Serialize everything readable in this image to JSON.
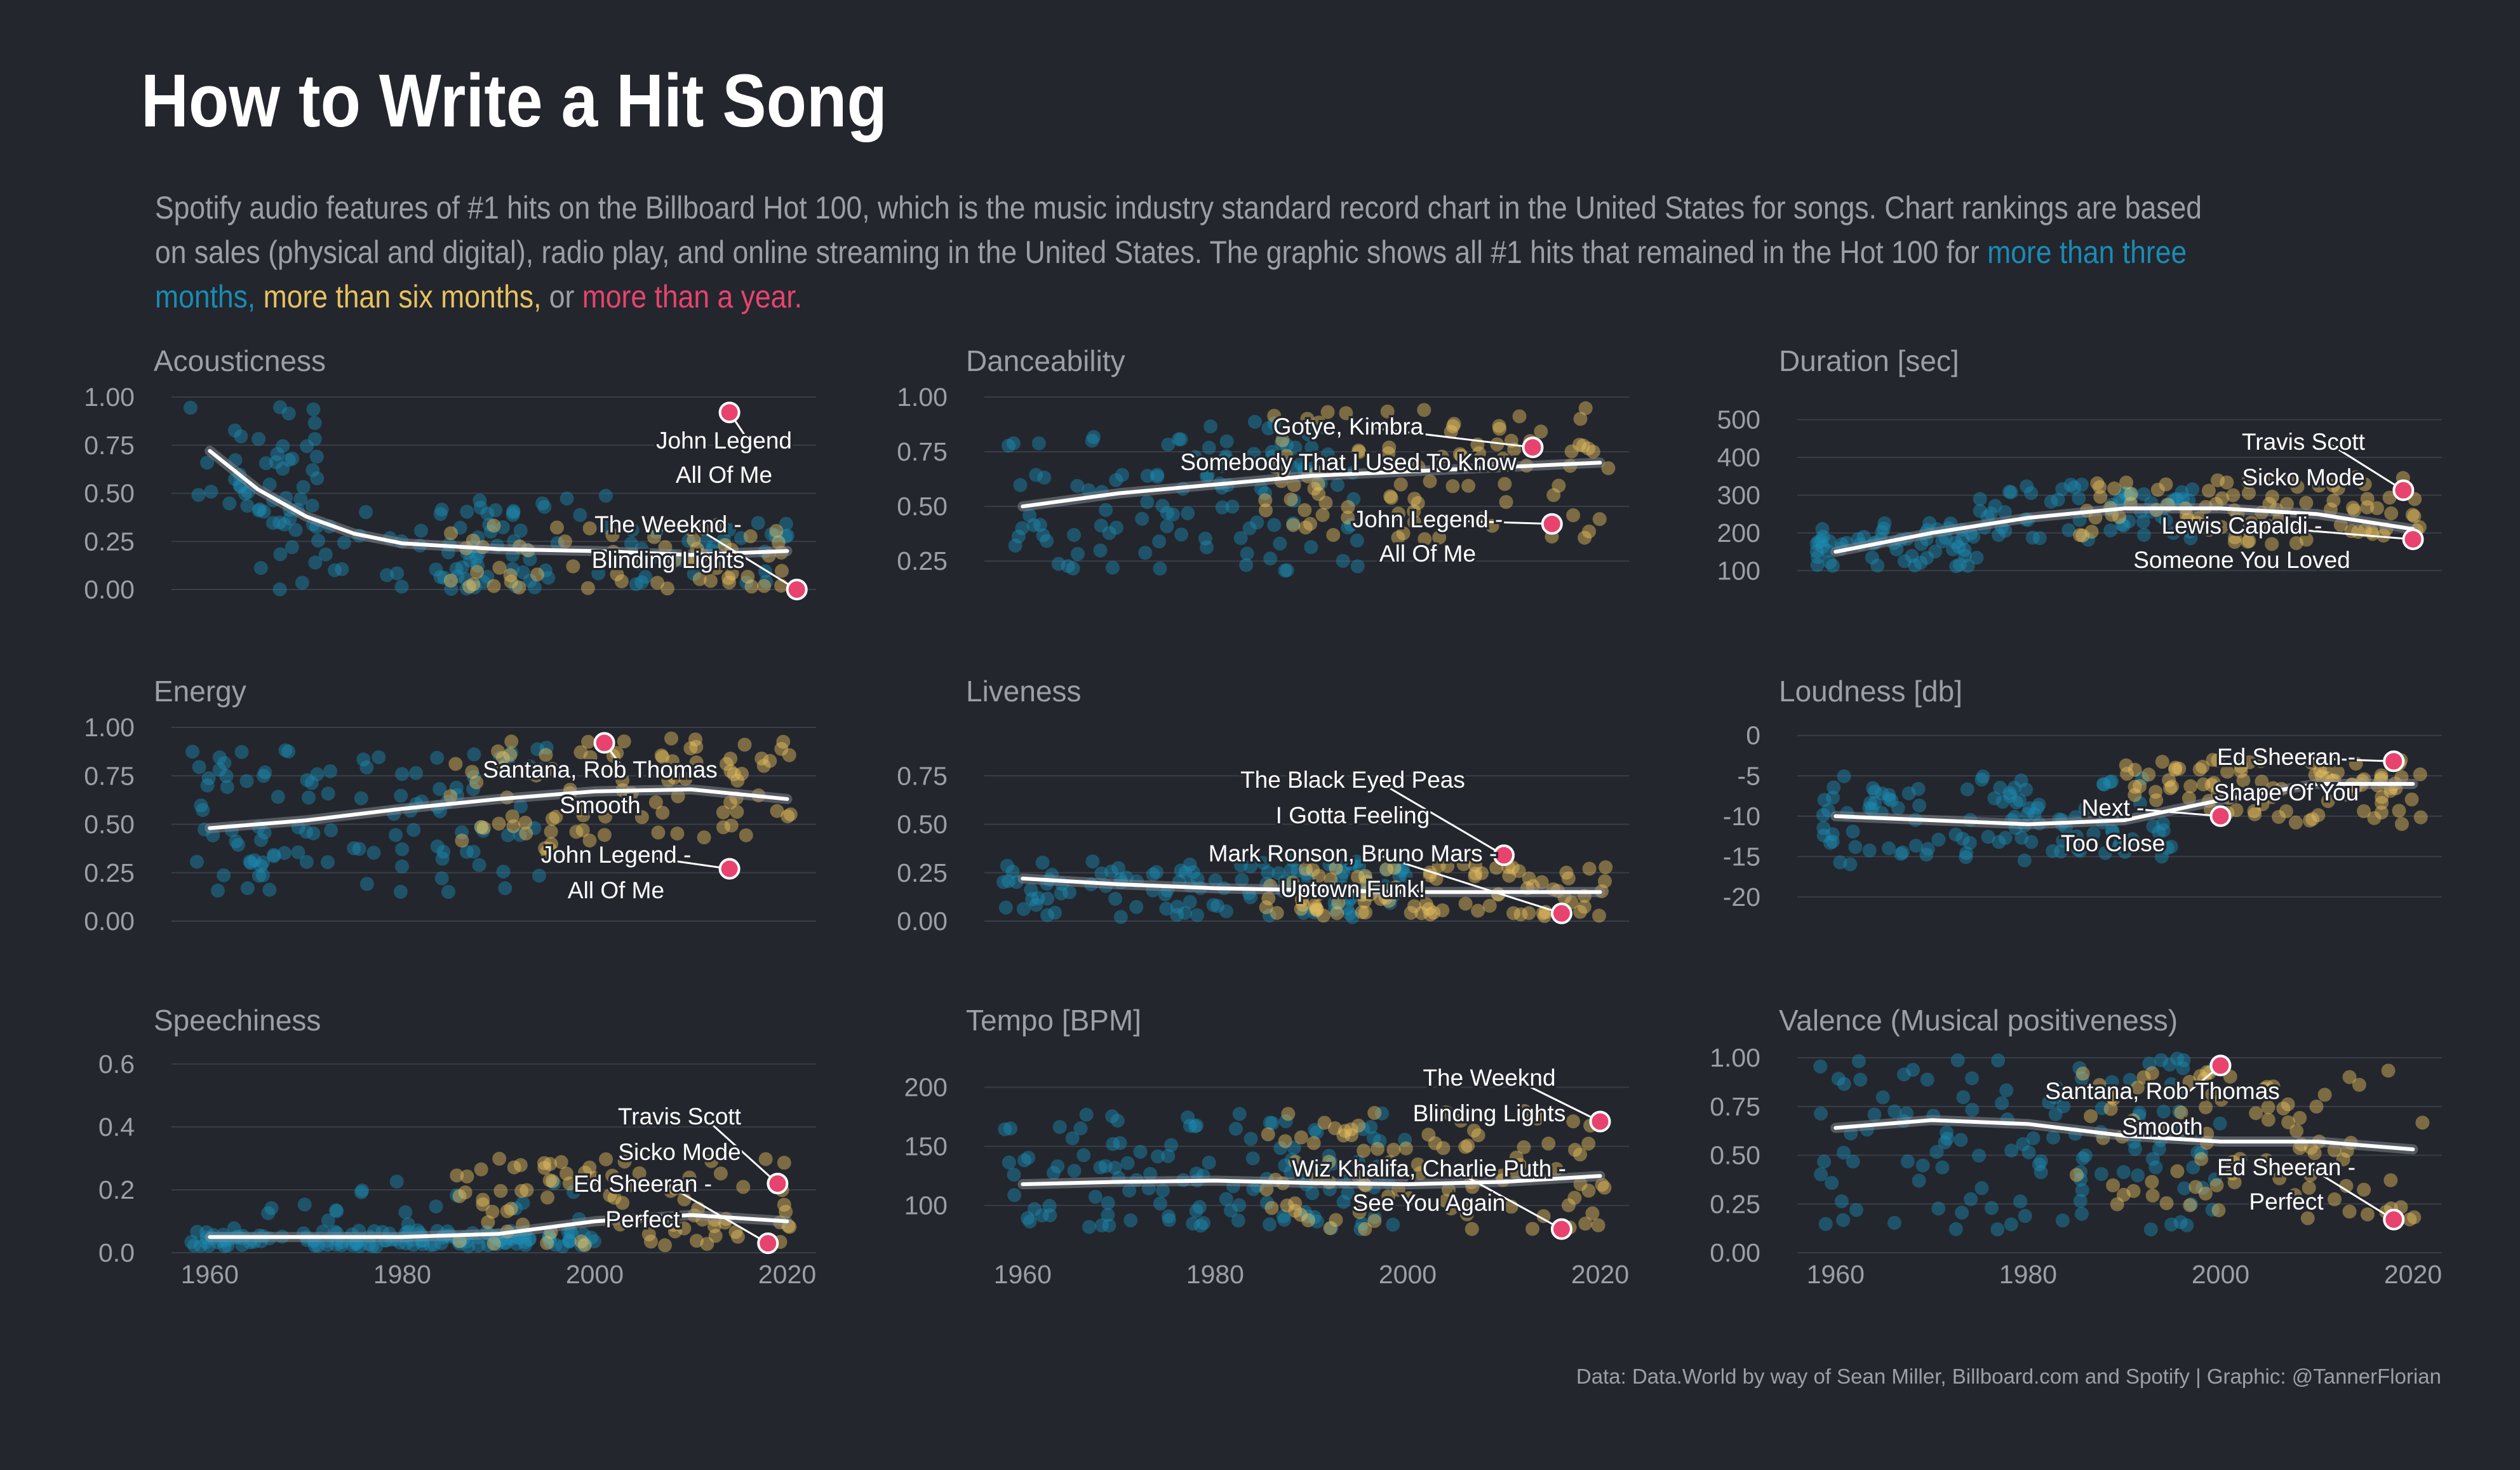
{
  "title": "How to Write a Hit Song",
  "subtitle": {
    "text1": "Spotify audio features of #1 hits on the Billboard Hot 100, which is the music industry standard record chart in the United States for songs. Chart rankings are based on sales (physical and digital), radio play, and online streaming in the United States. The graphic shows all #1 hits that remained in the Hot 100 for ",
    "hl_3m": "more than three months,",
    "sep1": " ",
    "hl_6m": "more than six months,",
    "sep2": " or ",
    "hl_1y": "more than a year."
  },
  "caption": "Data: Data.World by way of Sean Miller, Billboard.com and Spotify | Graphic: @TannerFlorian",
  "colors": {
    "background": "#23262d",
    "more_than_three_months": "#1a8bb3",
    "more_than_six_months": "#e8c260",
    "more_than_a_year": "#e8436e",
    "trend": "#ffffff",
    "grid": "#3a3e47",
    "text": "#9d9fa5"
  },
  "chart_data": [
    {
      "type": "scatter",
      "title": "Acousticness",
      "xlim": [
        1958,
        2023
      ],
      "ylim": [
        0,
        1
      ],
      "yticks": [
        "0.00",
        "0.25",
        "0.50",
        "0.75",
        "1.00"
      ],
      "ytick_values": [
        0,
        0.25,
        0.5,
        0.75,
        1
      ],
      "xticks": [],
      "trend": [
        [
          1960,
          0.72
        ],
        [
          1965,
          0.52
        ],
        [
          1970,
          0.38
        ],
        [
          1975,
          0.29
        ],
        [
          1980,
          0.24
        ],
        [
          1990,
          0.21
        ],
        [
          2000,
          0.2
        ],
        [
          2010,
          0.18
        ],
        [
          2020,
          0.2
        ]
      ],
      "density": [
        [
          1958,
          1972,
          0.3,
          1.0,
          40
        ],
        [
          1965,
          1995,
          0.0,
          0.45,
          65
        ],
        [
          1985,
          2005,
          0.0,
          0.5,
          22
        ],
        [
          1995,
          2021,
          0.0,
          0.35,
          30
        ]
      ],
      "yellow_density": [
        [
          1985,
          2021,
          0.0,
          0.35,
          60
        ]
      ],
      "highlight_points": [
        {
          "x": 2014,
          "y": 0.92,
          "label": [
            "John Legend",
            "All Of Me"
          ]
        },
        {
          "x": 2021,
          "y": 0.0,
          "label": [
            "The Weeknd -",
            "Blinding Lights"
          ]
        }
      ]
    },
    {
      "type": "scatter",
      "title": "Danceability",
      "xlim": [
        1958,
        2023
      ],
      "ylim": [
        0.12,
        1
      ],
      "yticks": [
        "0.25",
        "0.50",
        "0.75",
        "1.00"
      ],
      "ytick_values": [
        0.25,
        0.5,
        0.75,
        1
      ],
      "xticks": [],
      "trend": [
        [
          1960,
          0.5
        ],
        [
          1970,
          0.56
        ],
        [
          1980,
          0.6
        ],
        [
          1990,
          0.64
        ],
        [
          2000,
          0.66
        ],
        [
          2010,
          0.68
        ],
        [
          2020,
          0.7
        ]
      ],
      "density": [
        [
          1958,
          1995,
          0.2,
          0.9,
          110
        ]
      ],
      "yellow_density": [
        [
          1985,
          2021,
          0.35,
          0.95,
          90
        ]
      ],
      "highlight_points": [
        {
          "x": 2013,
          "y": 0.77,
          "label": [
            "Gotye, Kimbra",
            "Somebody That I Used To Know"
          ]
        },
        {
          "x": 2015,
          "y": 0.42,
          "label": [
            "John Legend -",
            "All Of Me"
          ]
        }
      ]
    },
    {
      "type": "scatter",
      "title": "Duration [sec]",
      "xlim": [
        1958,
        2023
      ],
      "ylim": [
        50,
        560
      ],
      "yticks": [
        "100",
        "200",
        "300",
        "400",
        "500"
      ],
      "ytick_values": [
        100,
        200,
        300,
        400,
        500
      ],
      "xticks": [],
      "trend": [
        [
          1960,
          150
        ],
        [
          1970,
          200
        ],
        [
          1980,
          240
        ],
        [
          1990,
          265
        ],
        [
          2000,
          265
        ],
        [
          2010,
          250
        ],
        [
          2020,
          210
        ]
      ],
      "density": [
        [
          1958,
          1975,
          110,
          230,
          60
        ],
        [
          1975,
          1998,
          180,
          330,
          60
        ]
      ],
      "yellow_density": [
        [
          1985,
          2021,
          170,
          350,
          85
        ]
      ],
      "highlight_points": [
        {
          "x": 2019,
          "y": 313,
          "label": [
            "Travis Scott",
            "Sicko Mode"
          ]
        },
        {
          "x": 2020,
          "y": 183,
          "label": [
            "Lewis Capaldi -",
            "Someone You Loved"
          ]
        }
      ]
    },
    {
      "type": "scatter",
      "title": "Energy",
      "xlim": [
        1958,
        2023
      ],
      "ylim": [
        0,
        1
      ],
      "yticks": [
        "0.00",
        "0.25",
        "0.50",
        "0.75",
        "1.00"
      ],
      "ytick_values": [
        0,
        0.25,
        0.5,
        0.75,
        1
      ],
      "xticks": [],
      "trend": [
        [
          1960,
          0.48
        ],
        [
          1970,
          0.52
        ],
        [
          1980,
          0.58
        ],
        [
          1990,
          0.63
        ],
        [
          2000,
          0.67
        ],
        [
          2010,
          0.68
        ],
        [
          2020,
          0.63
        ]
      ],
      "density": [
        [
          1958,
          1995,
          0.15,
          0.9,
          110
        ]
      ],
      "yellow_density": [
        [
          1985,
          2021,
          0.35,
          0.95,
          90
        ]
      ],
      "highlight_points": [
        {
          "x": 2001,
          "y": 0.92,
          "label": [
            "Santana, Rob Thomas",
            "Smooth"
          ]
        },
        {
          "x": 2014,
          "y": 0.27,
          "label": [
            "John Legend -",
            "All Of Me"
          ]
        }
      ]
    },
    {
      "type": "scatter",
      "title": "Liveness",
      "xlim": [
        1958,
        2023
      ],
      "ylim": [
        0,
        1
      ],
      "yticks": [
        "0.00",
        "0.25",
        "0.50",
        "0.75"
      ],
      "ytick_values": [
        0,
        0.25,
        0.5,
        0.75
      ],
      "xticks": [],
      "trend": [
        [
          1960,
          0.22
        ],
        [
          1970,
          0.19
        ],
        [
          1980,
          0.17
        ],
        [
          1990,
          0.16
        ],
        [
          2000,
          0.15
        ],
        [
          2010,
          0.15
        ],
        [
          2020,
          0.15
        ]
      ],
      "density": [
        [
          1958,
          2000,
          0.02,
          0.32,
          110
        ]
      ],
      "yellow_density": [
        [
          1985,
          2021,
          0.02,
          0.3,
          90
        ]
      ],
      "highlight_points": [
        {
          "x": 2010,
          "y": 0.34,
          "label": [
            "The Black Eyed Peas",
            "I Gotta Feeling"
          ]
        },
        {
          "x": 2016,
          "y": 0.04,
          "label": [
            "Mark Ronson, Bruno Mars -",
            "Uptown Funk!"
          ]
        }
      ]
    },
    {
      "type": "scatter",
      "title": "Loudness [db]",
      "xlim": [
        1958,
        2023
      ],
      "ylim": [
        -23,
        1
      ],
      "yticks": [
        "-20",
        "-15",
        "-10",
        "-5",
        "0"
      ],
      "ytick_values": [
        -20,
        -15,
        -10,
        -5,
        0
      ],
      "xticks": [],
      "trend": [
        [
          1960,
          -10
        ],
        [
          1970,
          -10.5
        ],
        [
          1980,
          -11
        ],
        [
          1990,
          -10.5
        ],
        [
          2000,
          -8
        ],
        [
          2010,
          -6
        ],
        [
          2020,
          -6
        ]
      ],
      "density": [
        [
          1958,
          1995,
          -16,
          -5,
          110
        ]
      ],
      "yellow_density": [
        [
          1990,
          2021,
          -11,
          -3,
          90
        ]
      ],
      "highlight_points": [
        {
          "x": 2018,
          "y": -3.2,
          "label": [
            "Ed Sheeran -",
            "Shape Of You"
          ]
        },
        {
          "x": 2000,
          "y": -10,
          "label": [
            "Next -",
            "Too Close"
          ]
        }
      ]
    },
    {
      "type": "scatter",
      "title": "Speechiness",
      "xlim": [
        1958,
        2023
      ],
      "ylim": [
        0,
        0.62
      ],
      "yticks": [
        "0.0",
        "0.2",
        "0.4",
        "0.6"
      ],
      "ytick_values": [
        0,
        0.2,
        0.4,
        0.6
      ],
      "xticks": [
        "1960",
        "1980",
        "2000",
        "2020"
      ],
      "xtick_values": [
        1960,
        1980,
        2000,
        2020
      ],
      "trend": [
        [
          1960,
          0.05
        ],
        [
          1970,
          0.05
        ],
        [
          1980,
          0.05
        ],
        [
          1990,
          0.06
        ],
        [
          2000,
          0.1
        ],
        [
          2010,
          0.12
        ],
        [
          2020,
          0.1
        ]
      ],
      "density": [
        [
          1958,
          2000,
          0.02,
          0.07,
          140
        ],
        [
          1958,
          2000,
          0.07,
          0.25,
          20
        ]
      ],
      "yellow_density": [
        [
          1985,
          2021,
          0.02,
          0.3,
          80
        ]
      ],
      "highlight_points": [
        {
          "x": 2019,
          "y": 0.22,
          "label": [
            "Travis Scott",
            "Sicko Mode"
          ]
        },
        {
          "x": 2018,
          "y": 0.03,
          "label": [
            "Ed Sheeran -",
            "Perfect"
          ]
        }
      ]
    },
    {
      "type": "scatter",
      "title": "Tempo [BPM]",
      "xlim": [
        1958,
        2023
      ],
      "ylim": [
        60,
        225
      ],
      "yticks": [
        "100",
        "150",
        "200"
      ],
      "ytick_values": [
        100,
        150,
        200
      ],
      "xticks": [
        "1960",
        "1980",
        "2000",
        "2020"
      ],
      "xtick_values": [
        1960,
        1980,
        2000,
        2020
      ],
      "trend": [
        [
          1960,
          118
        ],
        [
          1970,
          120
        ],
        [
          1980,
          121
        ],
        [
          1990,
          119
        ],
        [
          2000,
          118
        ],
        [
          2010,
          120
        ],
        [
          2020,
          125
        ]
      ],
      "density": [
        [
          1958,
          2000,
          80,
          180,
          120
        ]
      ],
      "yellow_density": [
        [
          1985,
          2021,
          80,
          180,
          90
        ]
      ],
      "highlight_points": [
        {
          "x": 2020,
          "y": 171,
          "label": [
            "The Weeknd",
            "Blinding Lights"
          ]
        },
        {
          "x": 2016,
          "y": 80,
          "label": [
            "Wiz Khalifa, Charlie Puth -",
            "See You Again"
          ]
        }
      ]
    },
    {
      "type": "scatter",
      "title": "Valence (Musical positiveness)",
      "xlim": [
        1958,
        2023
      ],
      "ylim": [
        0,
        1
      ],
      "yticks": [
        "0.00",
        "0.25",
        "0.50",
        "0.75",
        "1.00"
      ],
      "ytick_values": [
        0,
        0.25,
        0.5,
        0.75,
        1
      ],
      "xticks": [
        "1960",
        "1980",
        "2000",
        "2020"
      ],
      "xtick_values": [
        1960,
        1980,
        2000,
        2020
      ],
      "trend": [
        [
          1960,
          0.64
        ],
        [
          1970,
          0.68
        ],
        [
          1980,
          0.66
        ],
        [
          1990,
          0.6
        ],
        [
          2000,
          0.57
        ],
        [
          2010,
          0.57
        ],
        [
          2020,
          0.53
        ]
      ],
      "density": [
        [
          1958,
          2000,
          0.1,
          1.0,
          120
        ]
      ],
      "yellow_density": [
        [
          1985,
          2021,
          0.15,
          0.95,
          90
        ]
      ],
      "highlight_points": [
        {
          "x": 2000,
          "y": 0.96,
          "label": [
            "Santana, Rob Thomas",
            "Smooth"
          ]
        },
        {
          "x": 2018,
          "y": 0.17,
          "label": [
            "Ed Sheeran -",
            "Perfect"
          ]
        }
      ]
    }
  ]
}
